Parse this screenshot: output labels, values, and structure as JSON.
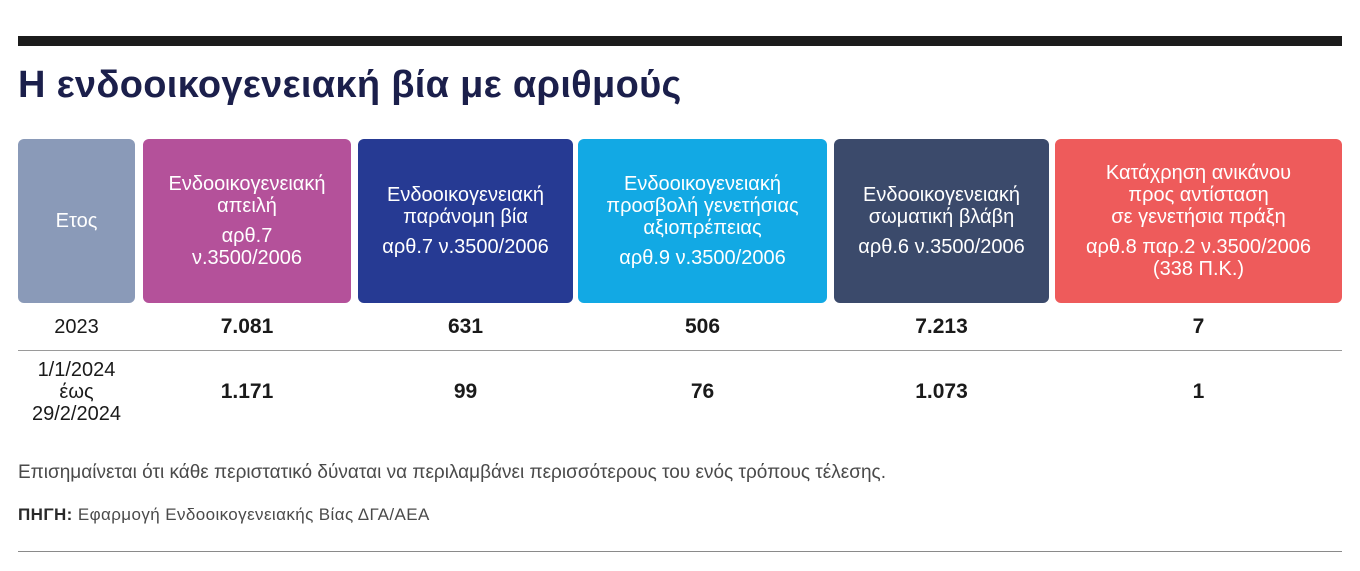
{
  "title": "Η ενδοοικογενειακή βία με αριθμούς",
  "chart_data": {
    "type": "table",
    "columns": [
      {
        "label": "Ετος",
        "article": "",
        "color": "#8a9ab8"
      },
      {
        "label": "Ενδοοικογενειακή\nαπειλή",
        "article": "αρθ.7\nν.3500/2006",
        "color": "#b4519a"
      },
      {
        "label": "Ενδοοικογενειακή\nπαράνομη βία",
        "article": "αρθ.7 ν.3500/2006",
        "color": "#263a93"
      },
      {
        "label": "Ενδοοικογενειακή\nπροσβολή γενετήσιας\nαξιοπρέπειας",
        "article": "αρθ.9 ν.3500/2006",
        "color": "#12a9e4"
      },
      {
        "label": "Ενδοοικογενειακή\nσωματική βλάβη",
        "article": "αρθ.6 ν.3500/2006",
        "color": "#3b4a6b"
      },
      {
        "label": "Κατάχρηση ανικάνου\nπρος αντίσταση\nσε γενετήσια πράξη",
        "article": "αρθ.8 παρ.2 ν.3500/2006\n(338 Π.Κ.)",
        "color": "#ee5b5b"
      }
    ],
    "rows": [
      {
        "period": "2023",
        "values": [
          "7.081",
          "631",
          "506",
          "7.213",
          "7"
        ]
      },
      {
        "period": "1/1/2024\nέως\n29/2/2024",
        "values": [
          "1.171",
          "99",
          "76",
          "1.073",
          "1"
        ]
      }
    ]
  },
  "note": "Επισημαίνεται ότι κάθε περιστατικό δύναται να περιλαμβάνει περισσότερους του ενός τρόπους τέλεσης.",
  "source": {
    "label": "ΠΗΓΗ:",
    "text": "Εφαρμογή Ενδοοικογενειακής Βίας ΔΓΑ/ΑΕΑ"
  }
}
